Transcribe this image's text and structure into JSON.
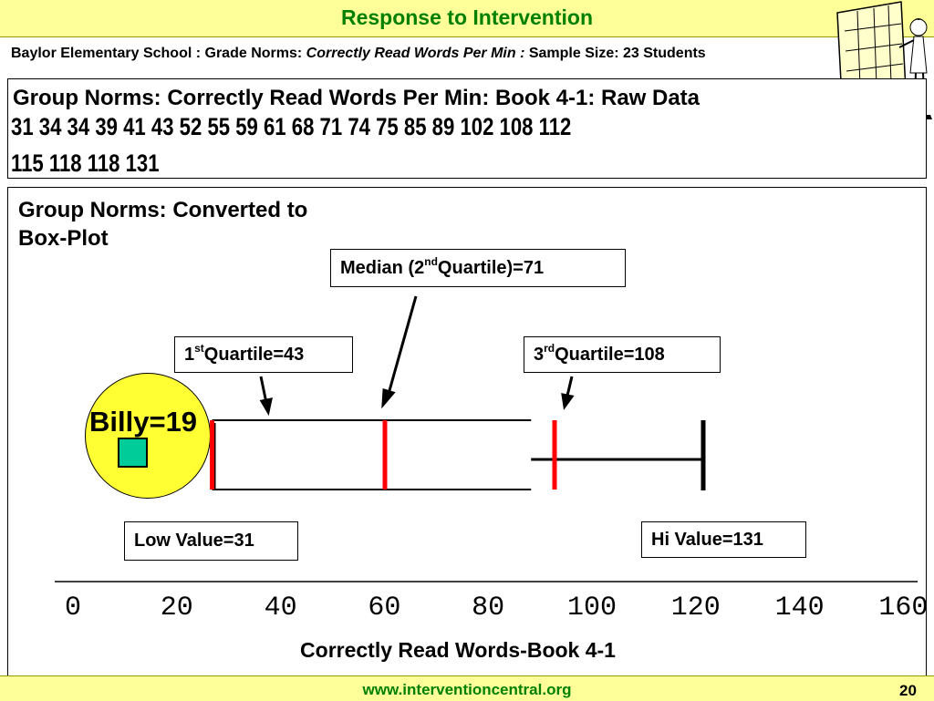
{
  "header": {
    "title": "Response to Intervention",
    "subtitle_plain_1": "Baylor Elementary School : Grade Norms: ",
    "subtitle_italic": "Correctly Read Words Per Min : ",
    "subtitle_plain_2": "Sample Size: 23 Students"
  },
  "raw_data": {
    "title": "Group Norms: Correctly Read Words Per Min: Book 4-1: Raw Data",
    "line1": "31  34  34  39  41  43  52  55  59  61  68  71  74  75  85  89  102  108  112",
    "line2": "115  118  118  131"
  },
  "box_plot": {
    "title": "Group Norms: Converted to Box-Plot",
    "median_text_1": "Median (2",
    "median_sup": "nd",
    "median_text_2": " Quartile)=71",
    "q1_text_1": "1",
    "q1_sup": "st",
    "q1_text_2": " Quartile=43",
    "q3_text_1": "3",
    "q3_sup": "rd",
    "q3_text_2": " Quartile=108",
    "low_label": "Low Value=31",
    "hi_label": "Hi Value=131",
    "billy_label": "Billy=19",
    "xlabel": "Correctly Read Words-Book 4-1"
  },
  "chart_data": {
    "type": "box",
    "title": "Group Norms: Converted to Box-Plot",
    "xlabel": "Correctly Read Words-Book 4-1",
    "xlim": [
      0,
      160
    ],
    "ticks": [
      "0",
      "20",
      "40",
      "60",
      "80",
      "100",
      "120",
      "140",
      "160"
    ],
    "low": 31,
    "q1": 43,
    "median": 71,
    "q3": 108,
    "high": 131,
    "marker": {
      "label": "Billy=19",
      "value": 19
    },
    "colors": {
      "quartile_lines": "#ff0000",
      "box_lines": "#000000",
      "marker_fill": "#00cc99",
      "marker_circle": "#ffff33"
    }
  },
  "footer": {
    "url": "www.interventioncentral.org",
    "page": "20"
  },
  "colors": {
    "banner_bg": "#ffff99",
    "title_green": "#008000"
  }
}
